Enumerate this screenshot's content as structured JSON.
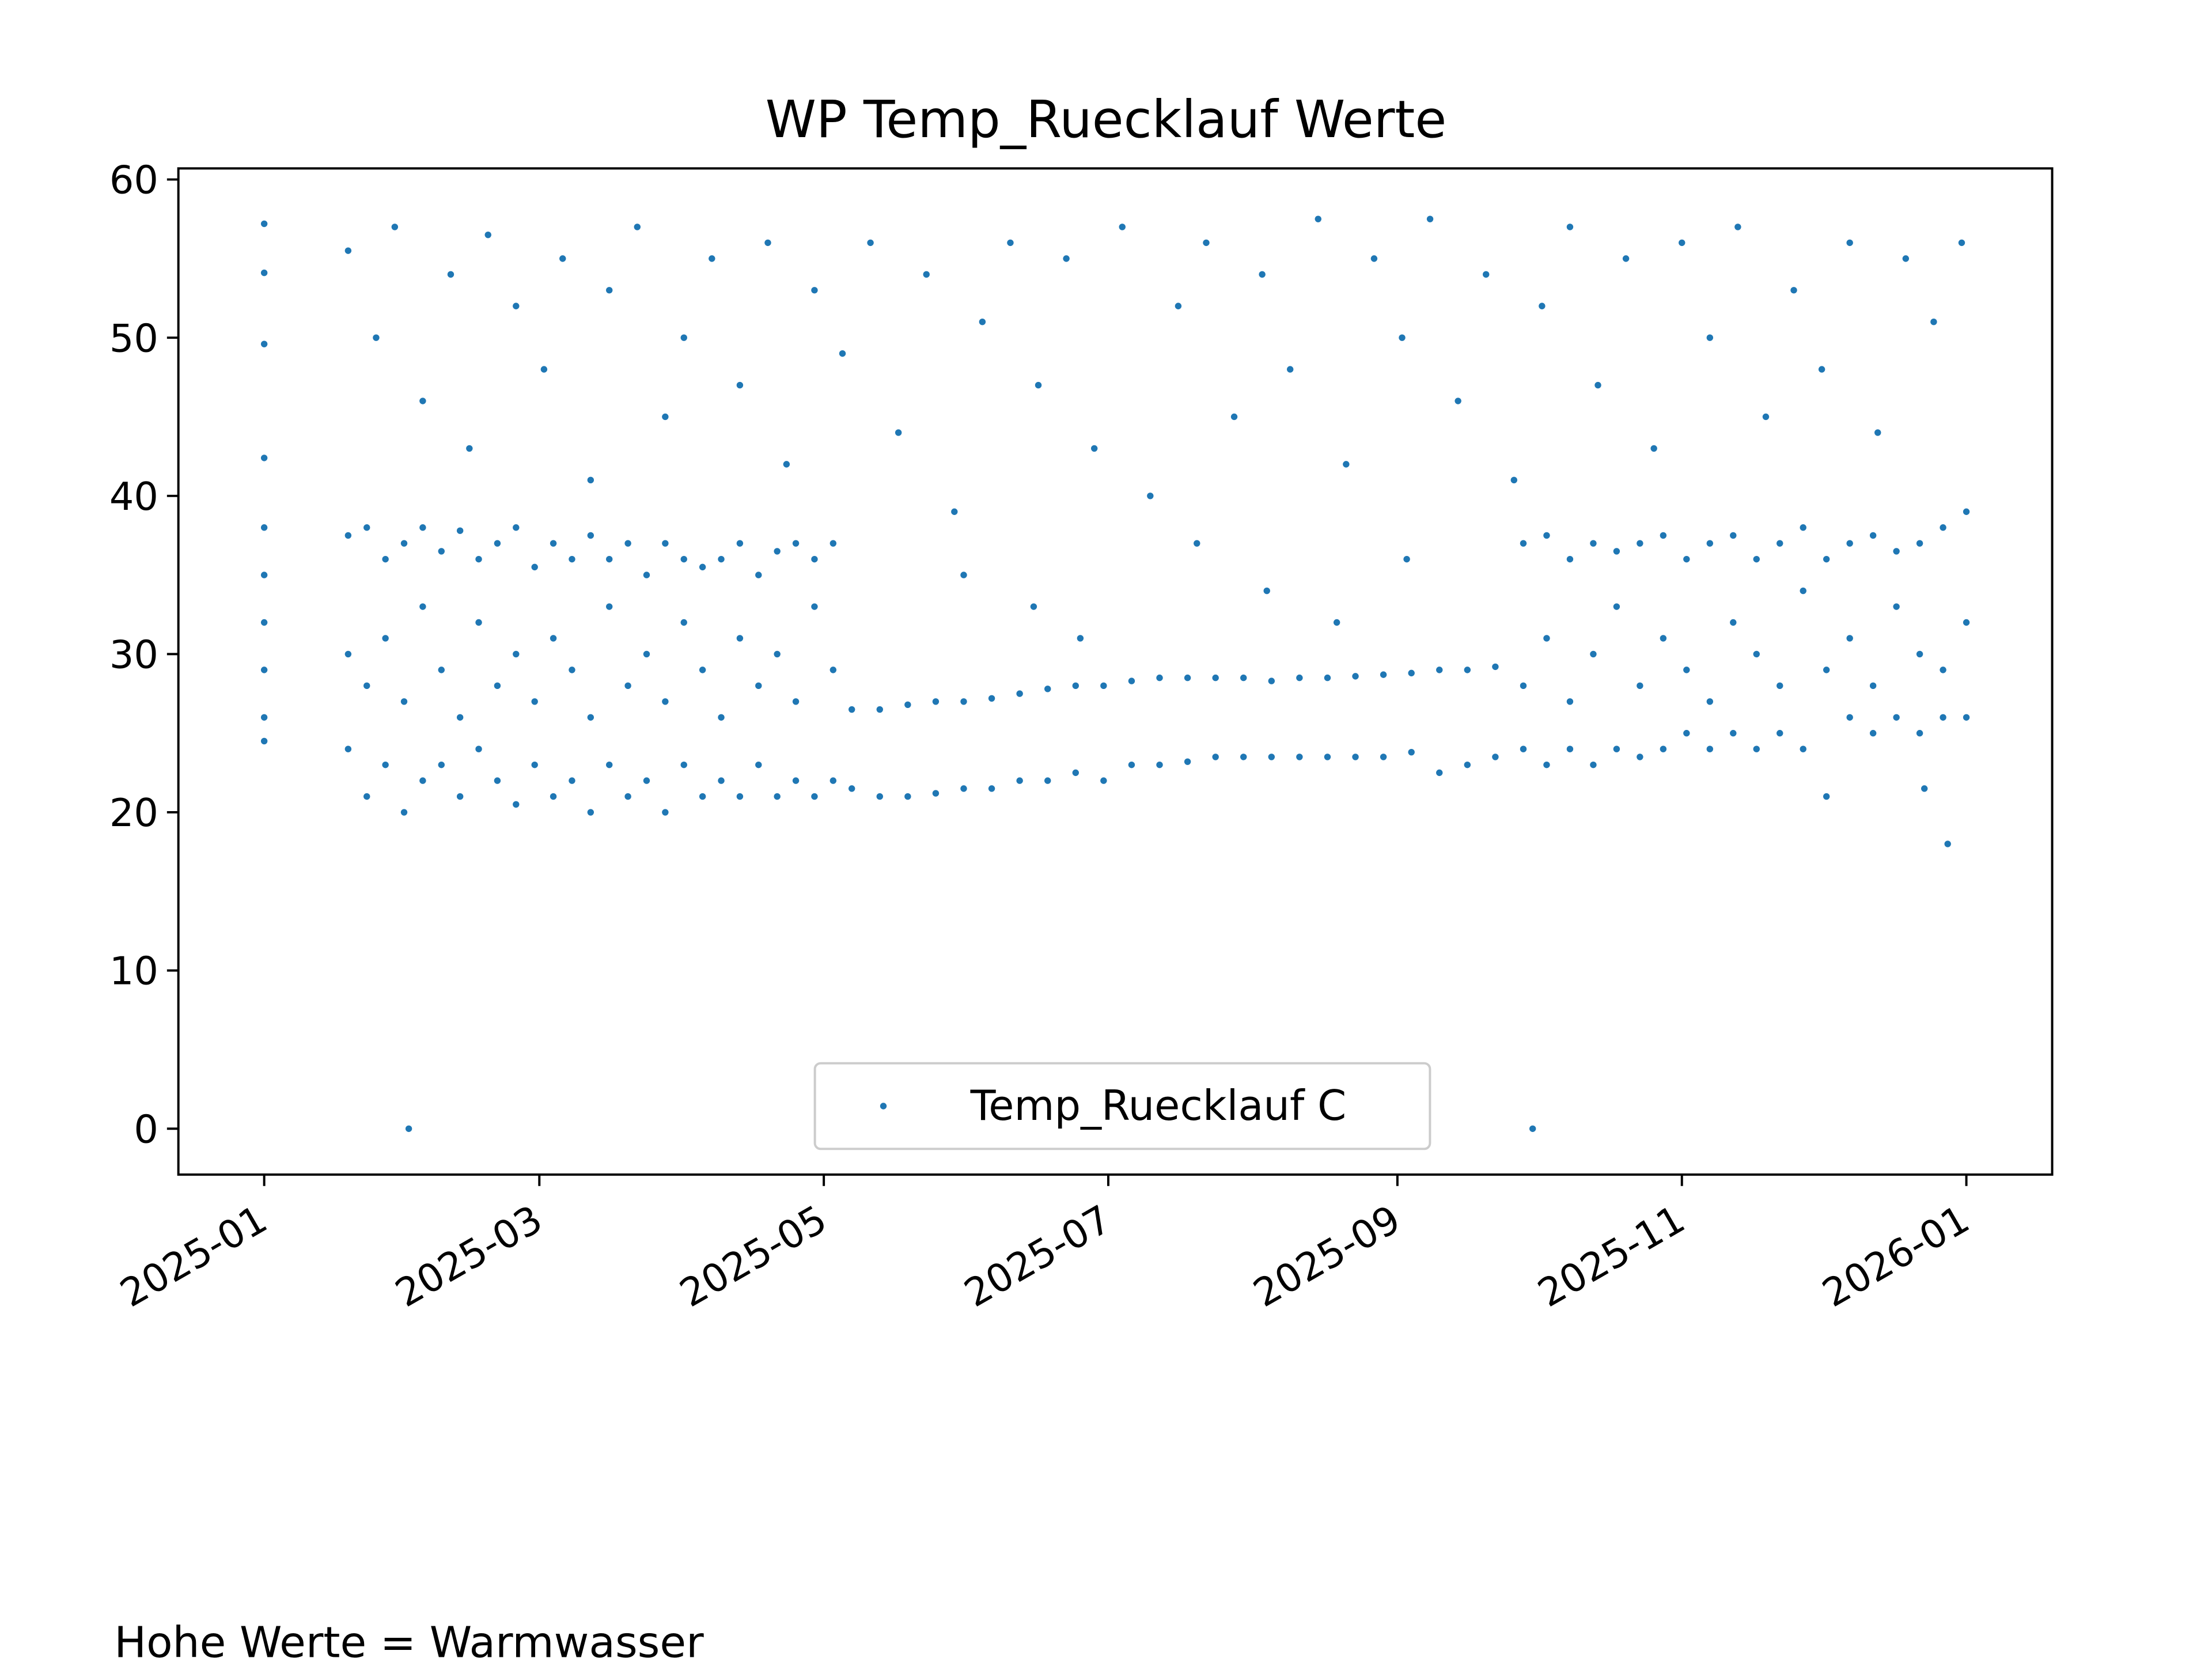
{
  "chart_data": {
    "type": "scatter",
    "title": "WP Temp_Ruecklauf Werte",
    "annotation": "Hohe Werte = Warmwasser",
    "x": [
      0,
      0,
      0,
      0,
      0,
      0,
      0,
      0,
      0,
      0,
      31,
      272,
      356,
      361,
      18,
      18,
      18,
      22,
      22,
      22,
      26,
      26,
      26,
      30,
      30,
      30,
      34,
      34,
      34,
      38,
      38,
      38,
      42,
      42,
      42,
      46,
      46,
      46,
      50,
      50,
      50,
      54,
      54,
      54,
      58,
      58,
      58,
      62,
      62,
      62,
      66,
      66,
      66,
      70,
      70,
      70,
      74,
      74,
      74,
      78,
      78,
      78,
      82,
      82,
      82,
      86,
      86,
      86,
      90,
      90,
      90,
      94,
      94,
      94,
      98,
      98,
      98,
      102,
      102,
      102,
      106,
      106,
      106,
      110,
      110,
      110,
      114,
      114,
      114,
      118,
      118,
      118,
      122,
      122,
      122,
      126,
      126,
      132,
      132,
      138,
      138,
      144,
      144,
      150,
      150,
      156,
      156,
      162,
      162,
      168,
      168,
      174,
      174,
      180,
      180,
      186,
      186,
      192,
      192,
      198,
      198,
      204,
      204,
      210,
      210,
      216,
      216,
      222,
      222,
      228,
      228,
      234,
      234,
      240,
      240,
      246,
      246,
      252,
      252,
      258,
      258,
      264,
      264,
      270,
      270,
      270,
      275,
      275,
      275,
      280,
      280,
      280,
      285,
      285,
      285,
      290,
      290,
      290,
      295,
      295,
      295,
      300,
      300,
      300,
      305,
      305,
      305,
      310,
      310,
      310,
      315,
      315,
      315,
      320,
      320,
      320,
      325,
      325,
      325,
      330,
      330,
      330,
      335,
      335,
      335,
      340,
      340,
      340,
      345,
      345,
      345,
      350,
      350,
      350,
      355,
      355,
      355,
      360,
      360,
      360,
      365,
      365,
      365,
      18,
      24,
      28,
      34,
      40,
      44,
      48,
      54,
      60,
      64,
      70,
      74,
      80,
      86,
      90,
      96,
      102,
      108,
      112,
      118,
      124,
      130,
      136,
      142,
      148,
      154,
      160,
      166,
      172,
      178,
      184,
      190,
      196,
      202,
      208,
      214,
      220,
      226,
      232,
      238,
      244,
      250,
      256,
      262,
      268,
      274,
      280,
      286,
      292,
      298,
      304,
      310,
      316,
      322,
      328,
      334,
      340,
      346,
      352,
      358,
      364,
      150,
      165,
      175,
      200,
      215,
      230,
      245
    ],
    "series": [
      {
        "name": "Temp_Ruecklauf C",
        "color": "#1f77b4",
        "values": [
          57.2,
          54.1,
          49.6,
          42.4,
          38,
          35,
          32,
          29,
          26,
          24.5,
          0,
          0,
          21.5,
          18,
          24,
          30,
          37.5,
          21,
          28,
          38,
          23,
          31,
          36,
          20,
          27,
          37,
          22,
          33,
          38,
          23,
          29,
          36.5,
          21,
          26,
          37.8,
          24,
          32,
          36,
          22,
          28,
          37,
          20.5,
          30,
          38,
          23,
          27,
          35.5,
          21,
          31,
          37,
          22,
          29,
          36,
          20,
          26,
          37.5,
          23,
          33,
          36,
          21,
          28,
          37,
          22,
          30,
          35,
          20,
          27,
          37,
          23,
          32,
          36,
          21,
          29,
          35.5,
          22,
          26,
          36,
          21,
          31,
          37,
          23,
          28,
          35,
          21,
          30,
          36.5,
          22,
          27,
          37,
          21,
          33,
          36,
          22,
          29,
          37,
          21.5,
          26.5,
          21,
          26.5,
          21,
          26.8,
          21.2,
          27,
          21.5,
          27,
          21.5,
          27.2,
          22,
          27.5,
          22,
          27.8,
          22.5,
          28,
          22,
          28,
          23,
          28.3,
          23,
          28.5,
          23.2,
          28.5,
          23.5,
          28.5,
          23.5,
          28.5,
          23.5,
          28.3,
          23.5,
          28.5,
          23.5,
          28.5,
          23.5,
          28.6,
          23.5,
          28.7,
          23.8,
          28.8,
          22.5,
          29,
          23,
          29,
          23.5,
          29.2,
          24,
          28,
          37,
          23,
          31,
          37.5,
          24,
          27,
          36,
          23,
          30,
          37,
          24,
          33,
          36.5,
          23.5,
          28,
          37,
          24,
          31,
          37.5,
          25,
          29,
          36,
          24,
          27,
          37,
          25,
          32,
          37.5,
          24,
          30,
          36,
          25,
          28,
          37,
          24,
          34,
          38,
          21,
          29,
          36,
          26,
          31,
          37,
          25,
          28,
          37.5,
          26,
          33,
          36.5,
          25,
          30,
          37,
          26,
          29,
          38,
          26,
          32,
          39,
          55.5,
          50,
          57,
          46,
          54,
          43,
          56.5,
          52,
          48,
          55,
          41,
          53,
          57,
          45,
          50,
          55,
          47,
          56,
          42,
          53,
          49,
          56,
          44,
          54,
          39,
          51,
          56,
          47,
          55,
          43,
          57,
          40,
          52,
          56,
          45,
          54,
          48,
          57.5,
          42,
          55,
          50,
          57.5,
          46,
          54,
          41,
          52,
          57,
          47,
          55,
          43,
          56,
          50,
          57,
          45,
          53,
          48,
          56,
          44,
          55,
          51,
          56,
          35,
          33,
          31,
          37,
          34,
          32,
          36
        ]
      }
    ],
    "xlim": [
      -18.4,
      383.4
    ],
    "xticks": [
      {
        "value": 0,
        "label": "2025-01"
      },
      {
        "value": 59,
        "label": "2025-03"
      },
      {
        "value": 120,
        "label": "2025-05"
      },
      {
        "value": 181,
        "label": "2025-07"
      },
      {
        "value": 243,
        "label": "2025-09"
      },
      {
        "value": 304,
        "label": "2025-11"
      },
      {
        "value": 365,
        "label": "2026-01"
      }
    ],
    "ylim": [
      -2.9,
      60.7
    ],
    "yticks": [
      0,
      10,
      20,
      30,
      40,
      50,
      60
    ],
    "legend": "lower center"
  }
}
